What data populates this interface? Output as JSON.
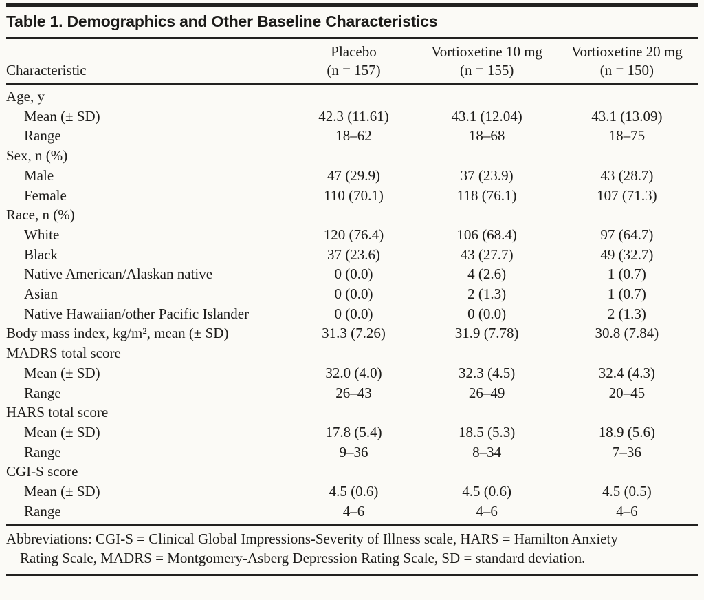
{
  "table": {
    "title": "Table 1. Demographics and Other Baseline Characteristics",
    "columns": {
      "characteristic_label": "Characteristic",
      "groups": [
        {
          "name": "Placebo",
          "n": "(n = 157)"
        },
        {
          "name": "Vortioxetine 10 mg",
          "n": "(n = 155)"
        },
        {
          "name": "Vortioxetine 20 mg",
          "n": "(n = 150)"
        }
      ]
    },
    "rows": [
      {
        "label": "Age, y",
        "indent": 0,
        "values": [
          "",
          "",
          ""
        ]
      },
      {
        "label": "Mean (± SD)",
        "indent": 1,
        "values": [
          "42.3 (11.61)",
          "43.1 (12.04)",
          "43.1 (13.09)"
        ]
      },
      {
        "label": "Range",
        "indent": 1,
        "values": [
          "18–62",
          "18–68",
          "18–75"
        ]
      },
      {
        "label": "Sex, n (%)",
        "indent": 0,
        "values": [
          "",
          "",
          ""
        ]
      },
      {
        "label": "Male",
        "indent": 1,
        "values": [
          "47 (29.9)",
          "37 (23.9)",
          "43 (28.7)"
        ]
      },
      {
        "label": "Female",
        "indent": 1,
        "values": [
          "110 (70.1)",
          "118 (76.1)",
          "107 (71.3)"
        ]
      },
      {
        "label": "Race, n (%)",
        "indent": 0,
        "values": [
          "",
          "",
          ""
        ]
      },
      {
        "label": "White",
        "indent": 1,
        "values": [
          "120 (76.4)",
          "106 (68.4)",
          "97 (64.7)"
        ]
      },
      {
        "label": "Black",
        "indent": 1,
        "values": [
          "37 (23.6)",
          "43 (27.7)",
          "49 (32.7)"
        ]
      },
      {
        "label": "Native American/Alaskan native",
        "indent": 1,
        "values": [
          "0 (0.0)",
          "4 (2.6)",
          "1 (0.7)"
        ]
      },
      {
        "label": "Asian",
        "indent": 1,
        "values": [
          "0 (0.0)",
          "2 (1.3)",
          "1 (0.7)"
        ]
      },
      {
        "label": "Native Hawaiian/other Pacific Islander",
        "indent": 1,
        "values": [
          "0 (0.0)",
          "0 (0.0)",
          "2 (1.3)"
        ]
      },
      {
        "label": "Body mass index, kg/m², mean (± SD)",
        "indent": 0,
        "values": [
          "31.3 (7.26)",
          "31.9 (7.78)",
          "30.8 (7.84)"
        ]
      },
      {
        "label": "MADRS total score",
        "indent": 0,
        "values": [
          "",
          "",
          ""
        ]
      },
      {
        "label": "Mean (± SD)",
        "indent": 1,
        "values": [
          "32.0 (4.0)",
          "32.3 (4.5)",
          "32.4 (4.3)"
        ]
      },
      {
        "label": "Range",
        "indent": 1,
        "values": [
          "26–43",
          "26–49",
          "20–45"
        ]
      },
      {
        "label": "HARS total score",
        "indent": 0,
        "values": [
          "",
          "",
          ""
        ]
      },
      {
        "label": "Mean (± SD)",
        "indent": 1,
        "values": [
          "17.8 (5.4)",
          "18.5 (5.3)",
          "18.9 (5.6)"
        ]
      },
      {
        "label": "Range",
        "indent": 1,
        "values": [
          "9–36",
          "8–34",
          "7–36"
        ]
      },
      {
        "label": "CGI-S score",
        "indent": 0,
        "values": [
          "",
          "",
          ""
        ]
      },
      {
        "label": "Mean (± SD)",
        "indent": 1,
        "values": [
          "4.5 (0.6)",
          "4.5 (0.6)",
          "4.5 (0.5)"
        ]
      },
      {
        "label": "Range",
        "indent": 1,
        "values": [
          "4–6",
          "4–6",
          "4–6"
        ]
      }
    ],
    "footnote": "Abbreviations: CGI-S = Clinical Global Impressions-Severity of Illness scale, HARS = Hamilton Anxiety Rating Scale, MADRS = Montgomery-Asberg Depression Rating Scale, SD = standard deviation.",
    "colors": {
      "background": "#fbfaf6",
      "text": "#1c1b19",
      "rule": "#22211f"
    }
  }
}
